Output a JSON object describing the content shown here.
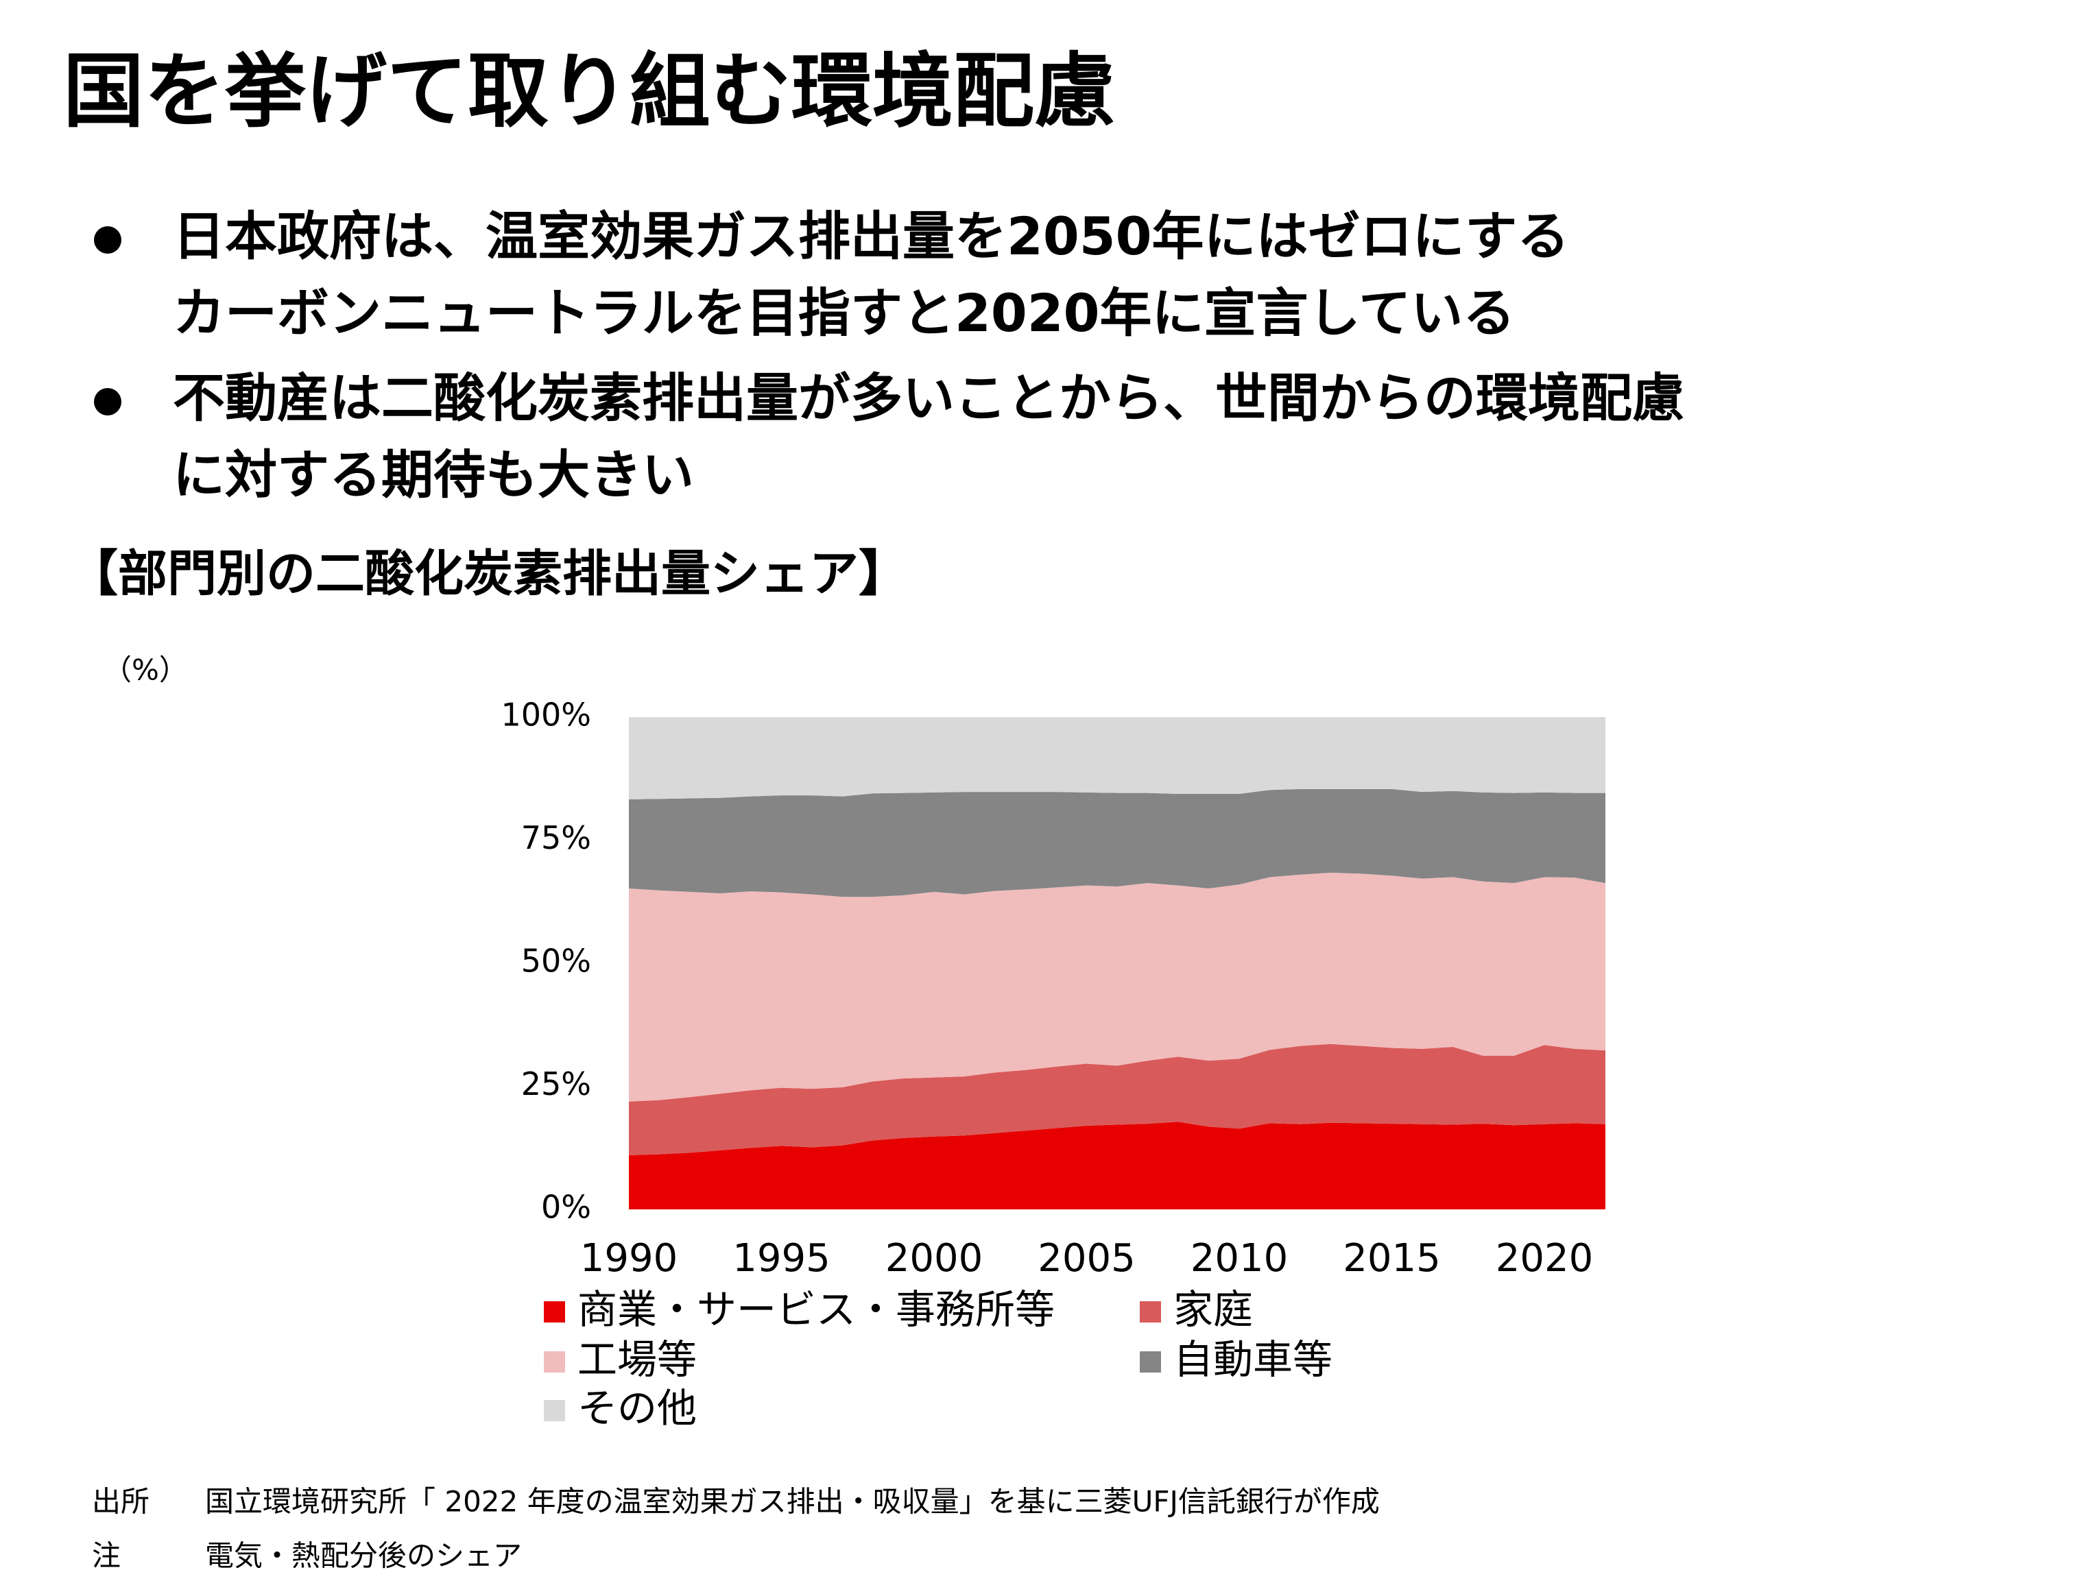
{
  "header": {
    "title": "国を挙げて取り組む環境配慮"
  },
  "bullets": [
    [
      "日本政府は、温室効果ガス排出量を2050年にはゼロにする",
      "カーボンニュートラルを目指すと2020年に宣言している"
    ],
    [
      "不動産は二酸化炭素排出量が多いことから、世間からの環境配慮",
      "に対する期待も大きい"
    ]
  ],
  "chart_data": {
    "type": "stacked-area",
    "title": "【部門別の二酸化炭素排出量シェア】",
    "ylabel": "（%）",
    "x": [
      1990,
      1991,
      1992,
      1993,
      1994,
      1995,
      1996,
      1997,
      1998,
      1999,
      2000,
      2001,
      2002,
      2003,
      2004,
      2005,
      2006,
      2007,
      2008,
      2009,
      2010,
      2011,
      2012,
      2013,
      2014,
      2015,
      2016,
      2017,
      2018,
      2019,
      2020,
      2021,
      2022
    ],
    "xlim": [
      1990,
      2022
    ],
    "xticks": [
      1990,
      1995,
      2000,
      2005,
      2010,
      2015,
      2020
    ],
    "ylim": [
      0,
      100
    ],
    "yticks": [
      {
        "value": 0,
        "label": "0%"
      },
      {
        "value": 25,
        "label": "25%"
      },
      {
        "value": 50,
        "label": "50%"
      },
      {
        "value": 75,
        "label": "75%"
      },
      {
        "value": 100,
        "label": "100%"
      }
    ],
    "legend": "bottom",
    "series": [
      {
        "name": "商業・サービス・事務所等",
        "color": "#e60000",
        "values": [
          11.0,
          11.2,
          11.5,
          12.0,
          12.5,
          12.9,
          12.6,
          13.0,
          14.0,
          14.5,
          14.8,
          15.0,
          15.5,
          16.0,
          16.5,
          17.0,
          17.2,
          17.4,
          17.8,
          16.8,
          16.4,
          17.5,
          17.3,
          17.6,
          17.5,
          17.4,
          17.3,
          17.2,
          17.4,
          17.1,
          17.3,
          17.5,
          17.3
        ]
      },
      {
        "name": "家庭",
        "color": "#d95a5a",
        "values": [
          10.9,
          11.0,
          11.3,
          11.5,
          11.7,
          11.8,
          11.9,
          11.8,
          12.0,
          12.1,
          12.0,
          12.0,
          12.3,
          12.3,
          12.5,
          12.6,
          12.0,
          12.8,
          13.2,
          13.4,
          14.2,
          14.9,
          15.9,
          16.0,
          15.7,
          15.4,
          15.3,
          15.8,
          13.8,
          14.1,
          16.1,
          15.1,
          15.0
        ]
      },
      {
        "name": "工場等",
        "color": "#f0bcbc",
        "values": [
          43.3,
          42.6,
          41.7,
          40.7,
          40.4,
          39.7,
          39.5,
          38.7,
          37.5,
          37.2,
          37.7,
          37.0,
          36.9,
          36.7,
          36.4,
          36.2,
          36.4,
          36.1,
          34.8,
          35.0,
          35.4,
          35.1,
          34.8,
          34.8,
          35.0,
          35.0,
          34.6,
          34.5,
          35.4,
          35.1,
          34.1,
          34.8,
          34.0
        ]
      },
      {
        "name": "自動車等",
        "color": "#858585",
        "values": [
          18.1,
          18.6,
          19.0,
          19.4,
          19.3,
          19.7,
          20.1,
          20.4,
          21.0,
          20.8,
          20.2,
          20.8,
          20.1,
          19.8,
          19.4,
          18.9,
          19.0,
          18.3,
          18.6,
          19.2,
          18.4,
          17.7,
          17.4,
          17.0,
          17.2,
          17.6,
          17.6,
          17.5,
          18.1,
          18.3,
          17.2,
          17.2,
          18.3
        ]
      },
      {
        "name": "その他",
        "color": "#d9d9d9",
        "values": [
          16.7,
          16.6,
          16.5,
          16.4,
          16.1,
          15.9,
          15.9,
          16.1,
          15.5,
          15.4,
          15.3,
          15.2,
          15.2,
          15.2,
          15.2,
          15.3,
          15.4,
          15.4,
          15.6,
          15.6,
          15.6,
          14.8,
          14.6,
          14.6,
          14.6,
          14.6,
          15.2,
          15.0,
          15.3,
          15.4,
          15.3,
          15.4,
          15.4
        ]
      }
    ]
  },
  "notes": [
    {
      "label": "出所",
      "text": "国立環境研究所「 2022 年度の温室効果ガス排出・吸収量」を基に三菱UFJ信託銀行が作成"
    },
    {
      "label": "注",
      "text": "電気・熱配分後のシェア"
    }
  ]
}
